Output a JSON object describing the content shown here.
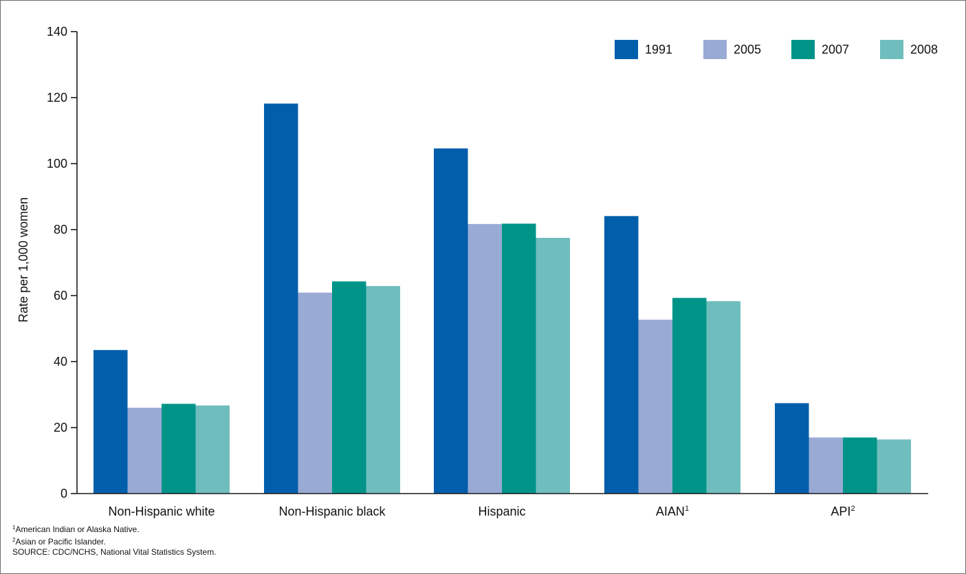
{
  "colors": {
    "axis": "#1a1a1a",
    "series": [
      "#005eab",
      "#99aad5",
      "#009489",
      "#70bdbe"
    ]
  },
  "chart_data": {
    "type": "bar",
    "title": "",
    "xlabel": "",
    "ylabel": "Rate per 1,000 women",
    "ylim": [
      0,
      140
    ],
    "yticks": [
      0,
      20,
      40,
      60,
      80,
      100,
      120,
      140
    ],
    "grid": false,
    "legend_position": "top-right",
    "categories": [
      {
        "label": "Non-Hispanic white",
        "sup": ""
      },
      {
        "label": "Non-Hispanic black",
        "sup": ""
      },
      {
        "label": "Hispanic",
        "sup": ""
      },
      {
        "label": "AIAN",
        "sup": "1"
      },
      {
        "label": "API",
        "sup": "2"
      }
    ],
    "series": [
      {
        "name": "1991",
        "values": [
          43.5,
          118.2,
          104.6,
          84.1,
          27.4
        ]
      },
      {
        "name": "2005",
        "values": [
          26.0,
          60.9,
          81.7,
          52.7,
          17.0
        ]
      },
      {
        "name": "2007",
        "values": [
          27.2,
          64.3,
          81.8,
          59.3,
          17.0
        ]
      },
      {
        "name": "2008",
        "values": [
          26.7,
          62.9,
          77.5,
          58.3,
          16.4
        ]
      }
    ]
  },
  "footnotes": [
    {
      "sup": "1",
      "text": "American Indian or Alaska Native."
    },
    {
      "sup": "2",
      "text": "Asian or Pacific Islander."
    },
    {
      "sup": "",
      "text": "SOURCE: CDC/NCHS, National Vital Statistics System."
    }
  ]
}
